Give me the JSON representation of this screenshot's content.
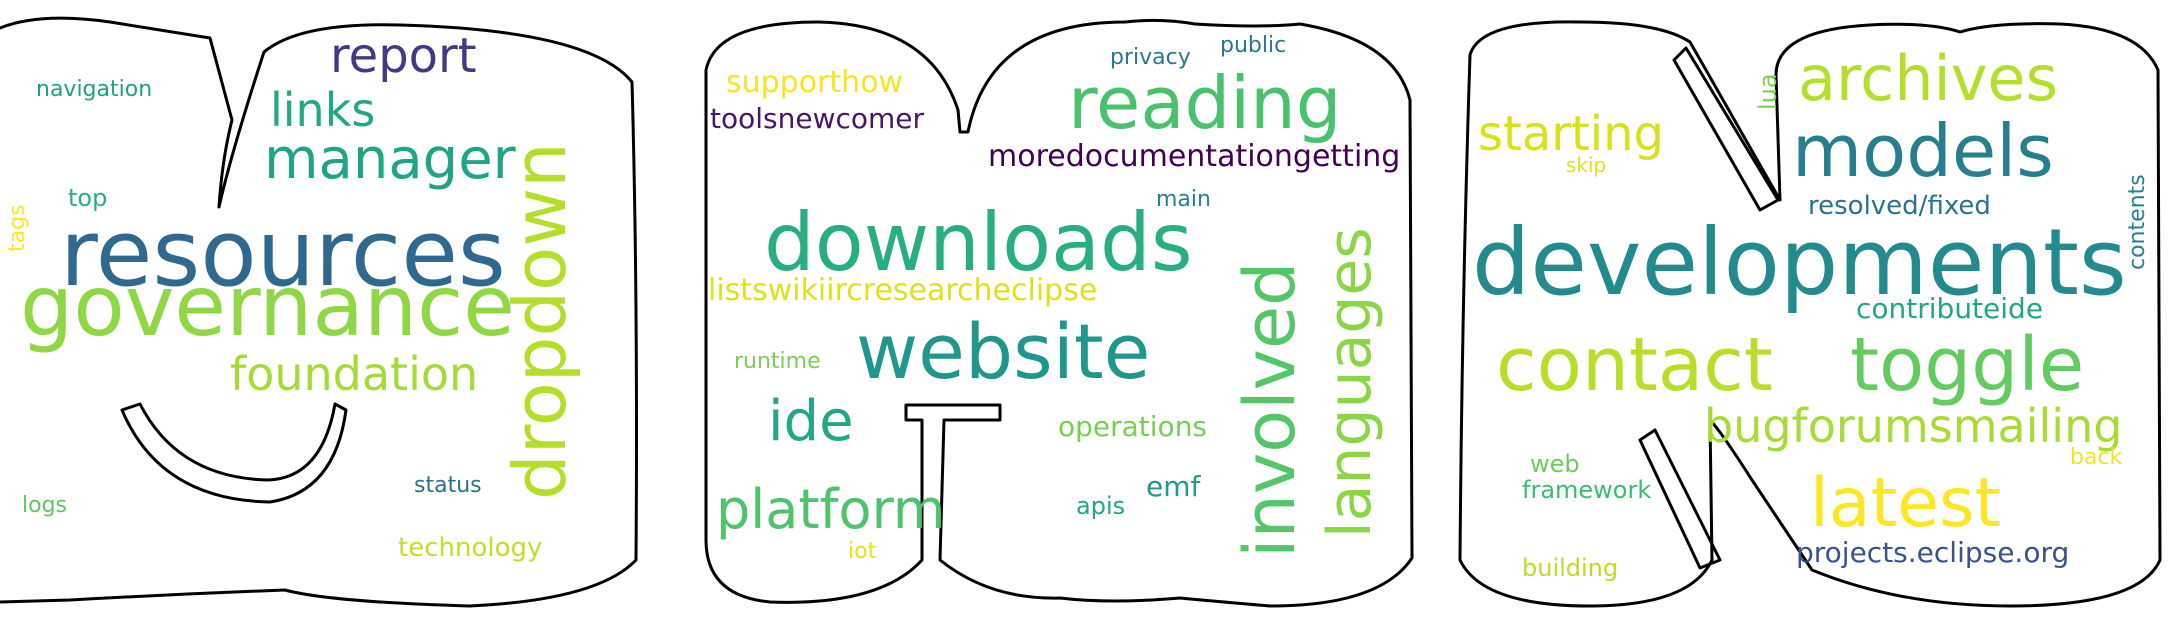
{
  "colors": {
    "background": "#ffffff",
    "outline": "#000000",
    "palette": [
      "#440154",
      "#3b528b",
      "#21918c",
      "#5ec962",
      "#fde725"
    ]
  },
  "clouds": [
    {
      "letter_shape": "S",
      "words": [
        {
          "text": "resources",
          "color": "#31688e"
        },
        {
          "text": "governance",
          "color": "#8fd744"
        },
        {
          "text": "dropdown",
          "color": "#b5de2b"
        },
        {
          "text": "manager",
          "color": "#20a486"
        },
        {
          "text": "report",
          "color": "#443a83"
        },
        {
          "text": "links",
          "color": "#22a884"
        },
        {
          "text": "foundation",
          "color": "#a5db36"
        },
        {
          "text": "navigation",
          "color": "#1fa187"
        },
        {
          "text": "top",
          "color": "#2ab07f"
        },
        {
          "text": "tags",
          "color": "#fde725"
        },
        {
          "text": "logs",
          "color": "#5ec962"
        },
        {
          "text": "status",
          "color": "#2c728e"
        },
        {
          "text": "technology",
          "color": "#c2df23"
        }
      ]
    },
    {
      "letter_shape": "G",
      "words": [
        {
          "text": "downloads",
          "color": "#28ae80"
        },
        {
          "text": "website",
          "color": "#1f988b"
        },
        {
          "text": "reading",
          "color": "#4ac16d"
        },
        {
          "text": "involved",
          "color": "#54c568"
        },
        {
          "text": "languages",
          "color": "#8bd646"
        },
        {
          "text": "ide",
          "color": "#22a884"
        },
        {
          "text": "platform",
          "color": "#4ec36b"
        },
        {
          "text": "supporthow",
          "color": "#f6e620"
        },
        {
          "text": "toolsnewcomer",
          "color": "#481769"
        },
        {
          "text": "moredocumentationgetting",
          "color": "#440154"
        },
        {
          "text": "listswikiircresearcheclipse",
          "color": "#dde318"
        },
        {
          "text": "privacy",
          "color": "#2a788e"
        },
        {
          "text": "public",
          "color": "#2a788e"
        },
        {
          "text": "main",
          "color": "#25848e"
        },
        {
          "text": "runtime",
          "color": "#7ad151"
        },
        {
          "text": "operations",
          "color": "#75d054"
        },
        {
          "text": "emf",
          "color": "#1e9b8a"
        },
        {
          "text": "apis",
          "color": "#22a785"
        },
        {
          "text": "iot",
          "color": "#e5e419"
        }
      ]
    },
    {
      "letter_shape": "N",
      "words": [
        {
          "text": "developments",
          "color": "#238a8d"
        },
        {
          "text": "contact",
          "color": "#b8de29"
        },
        {
          "text": "toggle",
          "color": "#63cb5f"
        },
        {
          "text": "models",
          "color": "#277f8e"
        },
        {
          "text": "archives",
          "color": "#b5de2b"
        },
        {
          "text": "latest",
          "color": "#fde725"
        },
        {
          "text": "starting",
          "color": "#d8e219"
        },
        {
          "text": "bugforumsmailing",
          "color": "#a8db34"
        },
        {
          "text": "resolved/fixed",
          "color": "#2c728e"
        },
        {
          "text": "contributeide",
          "color": "#22a785"
        },
        {
          "text": "projects.eclipse.org",
          "color": "#3b528b"
        },
        {
          "text": "lua",
          "color": "#7ad151"
        },
        {
          "text": "skip",
          "color": "#dde318"
        },
        {
          "text": "contents",
          "color": "#26828e"
        },
        {
          "text": "web",
          "color": "#6ccd5a"
        },
        {
          "text": "framework",
          "color": "#3bbb75"
        },
        {
          "text": "back",
          "color": "#f1e51d"
        },
        {
          "text": "building",
          "color": "#b8de29"
        }
      ]
    }
  ]
}
